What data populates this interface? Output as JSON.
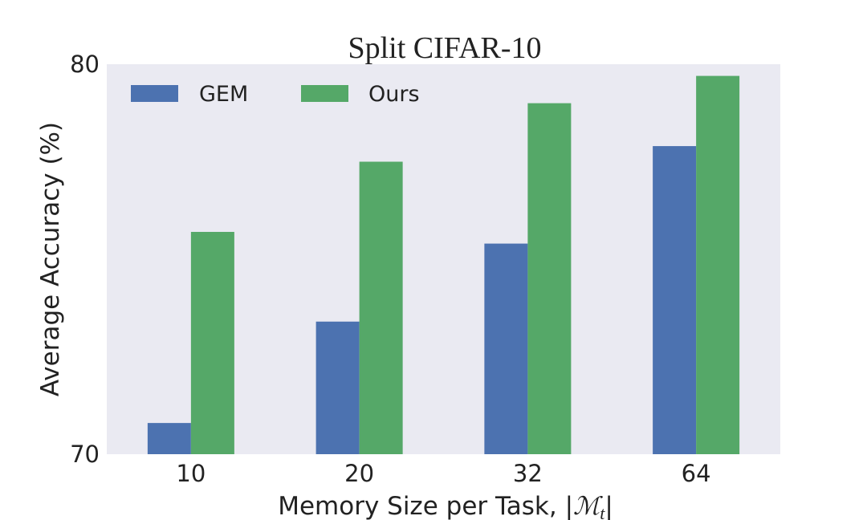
{
  "chart_data": {
    "type": "bar",
    "title": "Split CIFAR-10",
    "xlabel": "Memory Size per Task, |",
    "xlabel_math": "ℳ",
    "xlabel_sub": "t",
    "xlabel_end": "|",
    "ylabel": "Average Accuracy (%)",
    "categories": [
      "10",
      "20",
      "32",
      "64"
    ],
    "ylim": [
      70,
      80
    ],
    "yticks": [
      "70",
      "80"
    ],
    "series": [
      {
        "name": "GEM",
        "color": "#4c72b0",
        "values": [
          70.8,
          73.4,
          75.4,
          77.9
        ]
      },
      {
        "name": "Ours",
        "color": "#55a868",
        "values": [
          75.7,
          77.5,
          79.0,
          79.7
        ]
      }
    ],
    "legend": "top-left",
    "grid": false,
    "background": "#eaeaf2"
  }
}
